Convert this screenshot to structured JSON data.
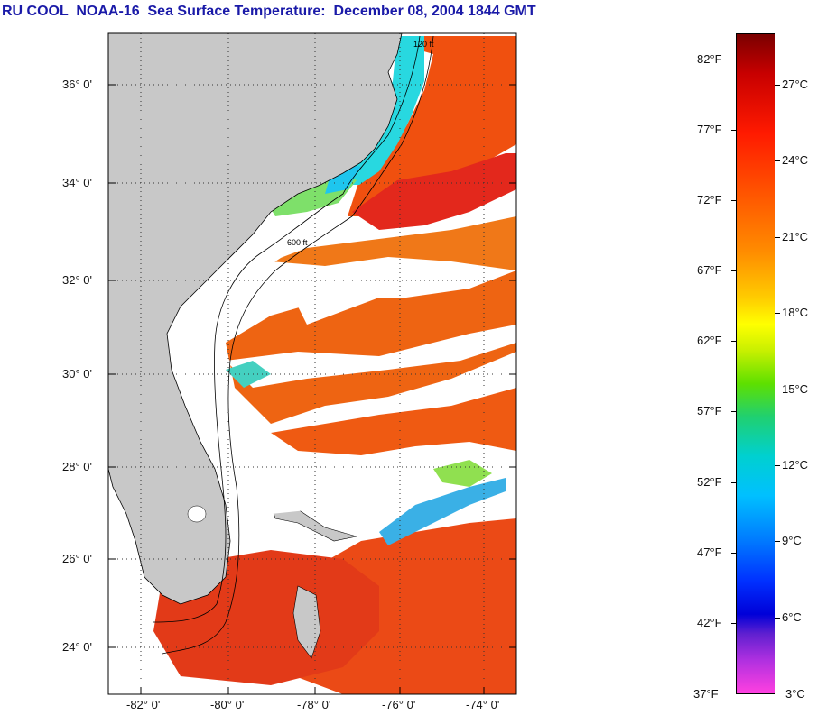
{
  "title": "RU COOL  NOAA-16  Sea Surface Temperature:  December 08, 2004 1844 GMT",
  "map": {
    "lat_labels": [
      "36° 0'",
      "34° 0'",
      "32° 0'",
      "30° 0'",
      "28° 0'",
      "26° 0'",
      "24° 0'"
    ],
    "lon_labels": [
      "-82° 0'",
      "-80° 0'",
      "-78° 0'",
      "-76° 0'",
      "-74° 0'"
    ],
    "contour_labels": [
      "120 ft",
      "600 ft"
    ],
    "land_color": "#c8c8c8",
    "cloud_color": "#ffffff"
  },
  "colorbar": {
    "fahrenheit": [
      "82°F",
      "77°F",
      "72°F",
      "67°F",
      "62°F",
      "57°F",
      "52°F",
      "47°F",
      "42°F",
      "37°F"
    ],
    "celsius": [
      "27°C",
      "24°C",
      "21°C",
      "18°C",
      "15°C",
      "12°C",
      "9°C",
      "6°C",
      "3°C"
    ]
  }
}
